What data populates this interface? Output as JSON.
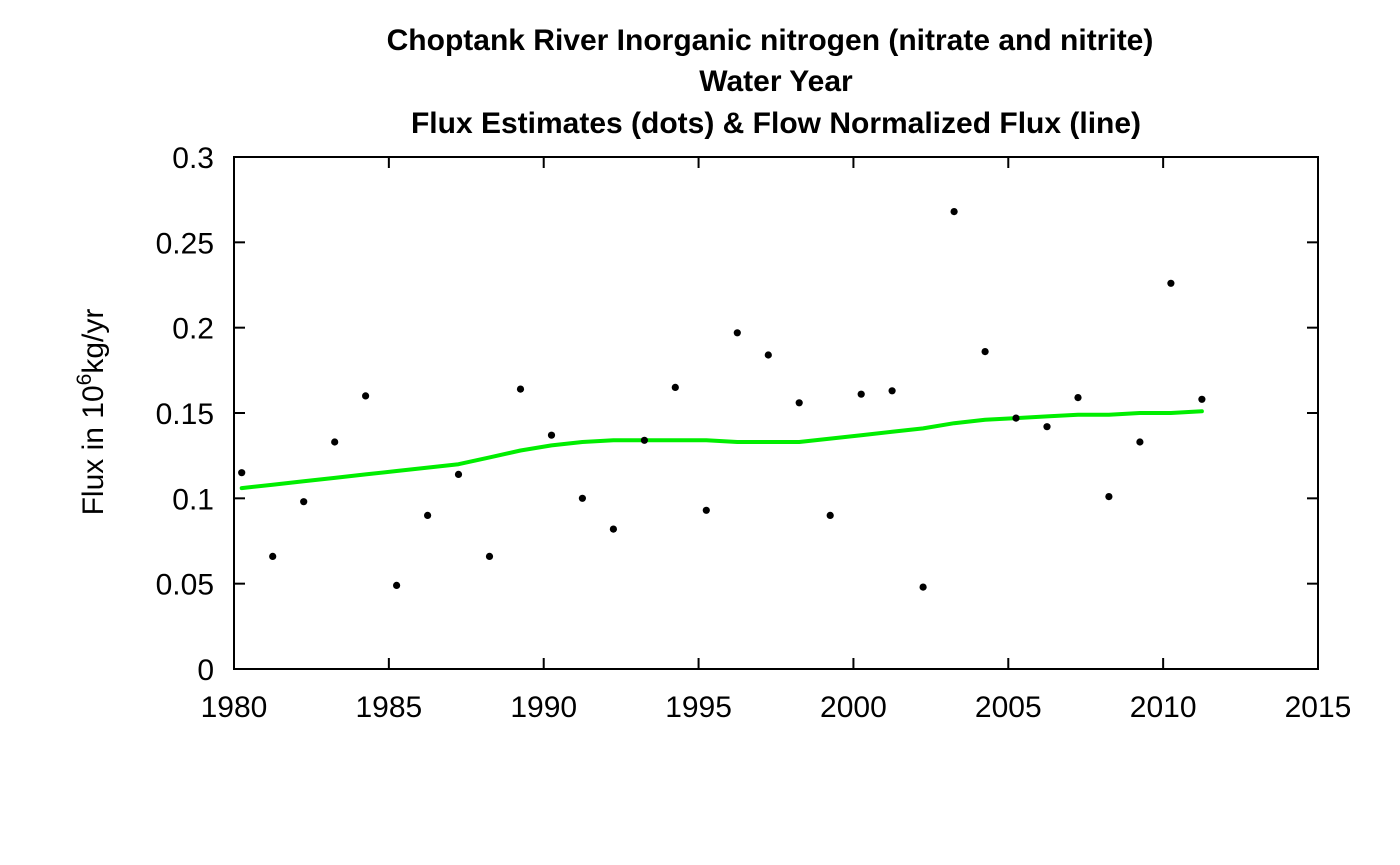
{
  "chart_data": {
    "type": "scatter",
    "title_lines": [
      "Choptank River   Inorganic nitrogen (nitrate and nitrite)",
      "Water Year",
      "Flux Estimates (dots) & Flow Normalized Flux (line)"
    ],
    "xlabel": "",
    "ylabel": {
      "prefix": "Flux in 10",
      "superscript": "6",
      "suffix": "kg/yr"
    },
    "xlim": [
      1980,
      2015
    ],
    "ylim": [
      0,
      0.3
    ],
    "x_ticks": [
      1980,
      1985,
      1990,
      1995,
      2000,
      2005,
      2010,
      2015
    ],
    "y_ticks": [
      "0",
      "0.05",
      "0.1",
      "0.15",
      "0.2",
      "0.25",
      "0.3"
    ],
    "grid": false,
    "series": [
      {
        "kind": "points",
        "color": "#000000",
        "x": [
          1980.25,
          1981.25,
          1982.25,
          1983.25,
          1984.25,
          1985.25,
          1986.25,
          1987.25,
          1988.25,
          1989.25,
          1990.25,
          1991.25,
          1992.25,
          1993.25,
          1994.25,
          1995.25,
          1996.25,
          1997.25,
          1998.25,
          1999.25,
          2000.25,
          2001.25,
          2002.25,
          2003.25,
          2004.25,
          2005.25,
          2006.25,
          2007.25,
          2008.25,
          2009.25,
          2010.25,
          2011.25
        ],
        "y": [
          0.115,
          0.066,
          0.098,
          0.133,
          0.16,
          0.049,
          0.09,
          0.114,
          0.066,
          0.164,
          0.137,
          0.1,
          0.082,
          0.134,
          0.165,
          0.093,
          0.197,
          0.184,
          0.156,
          0.09,
          0.161,
          0.163,
          0.048,
          0.268,
          0.186,
          0.147,
          0.142,
          0.159,
          0.101,
          0.133,
          0.226,
          0.158
        ]
      },
      {
        "kind": "line",
        "color": "#00ee00",
        "x": [
          1980.25,
          1981.25,
          1982.25,
          1983.25,
          1984.25,
          1985.25,
          1986.25,
          1987.25,
          1988.25,
          1989.25,
          1990.25,
          1991.25,
          1992.25,
          1993.25,
          1994.25,
          1995.25,
          1996.25,
          1997.25,
          1998.25,
          1999.25,
          2000.25,
          2001.25,
          2002.25,
          2003.25,
          2004.25,
          2005.25,
          2006.25,
          2007.25,
          2008.25,
          2009.25,
          2010.25,
          2011.25
        ],
        "y": [
          0.106,
          0.108,
          0.11,
          0.112,
          0.114,
          0.116,
          0.118,
          0.12,
          0.124,
          0.128,
          0.131,
          0.133,
          0.134,
          0.134,
          0.134,
          0.134,
          0.133,
          0.133,
          0.133,
          0.135,
          0.137,
          0.139,
          0.141,
          0.144,
          0.146,
          0.147,
          0.148,
          0.149,
          0.149,
          0.15,
          0.15,
          0.151
        ]
      }
    ]
  }
}
